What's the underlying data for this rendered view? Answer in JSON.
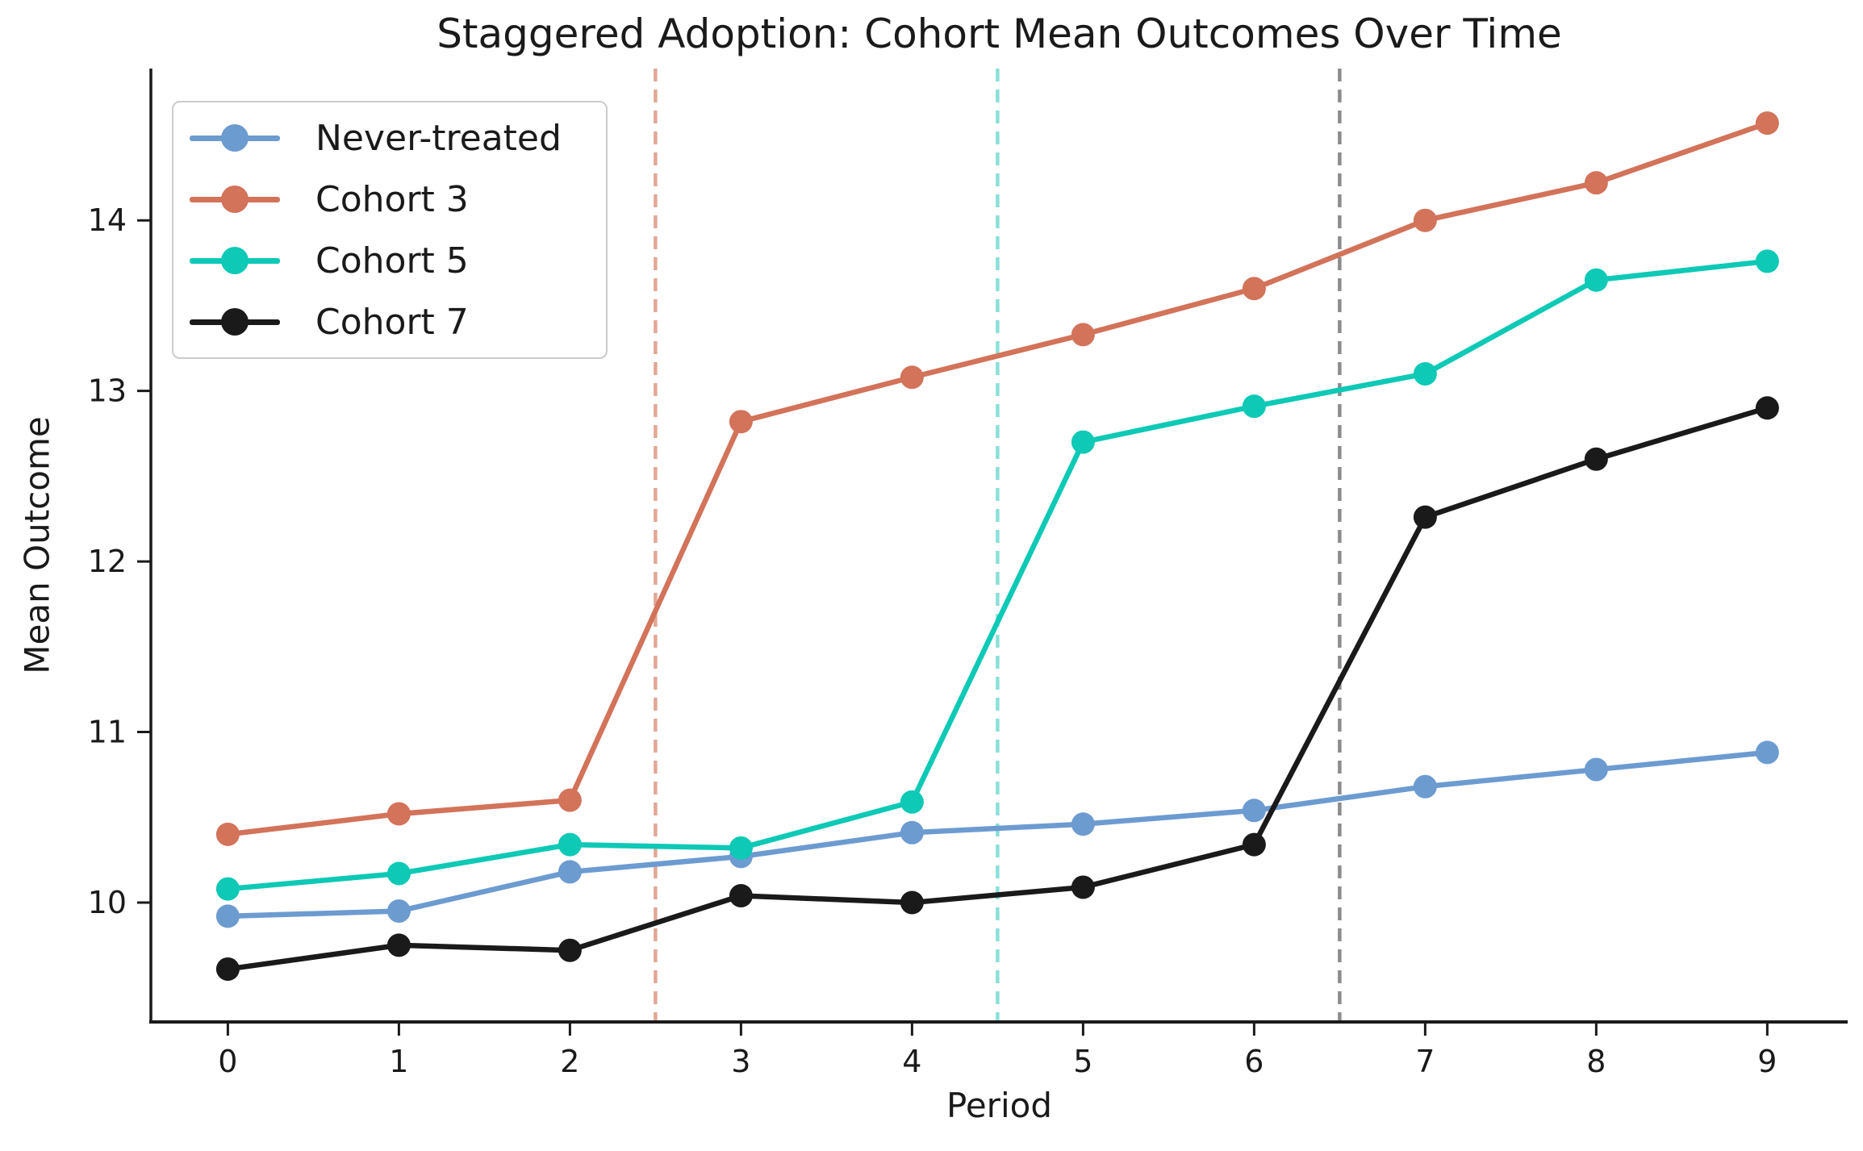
{
  "chart_data": {
    "type": "line",
    "title": "Staggered Adoption: Cohort Mean Outcomes Over Time",
    "xlabel": "Period",
    "ylabel": "Mean Outcome",
    "x": [
      0,
      1,
      2,
      3,
      4,
      5,
      6,
      7,
      8,
      9
    ],
    "series": [
      {
        "name": "Never-treated",
        "color": "#6c9bd0",
        "values": [
          9.92,
          9.95,
          10.18,
          10.27,
          10.41,
          10.46,
          10.54,
          10.68,
          10.78,
          10.88
        ]
      },
      {
        "name": "Cohort 3",
        "color": "#d2735a",
        "values": [
          10.4,
          10.52,
          10.6,
          12.82,
          13.08,
          13.33,
          13.6,
          14.0,
          14.22,
          14.57
        ]
      },
      {
        "name": "Cohort 5",
        "color": "#0dc9b5",
        "values": [
          10.08,
          10.17,
          10.34,
          10.32,
          10.59,
          12.7,
          12.91,
          13.1,
          13.65,
          13.76
        ]
      },
      {
        "name": "Cohort 7",
        "color": "#1a1a1a",
        "values": [
          9.61,
          9.75,
          9.72,
          10.04,
          10.0,
          10.09,
          10.34,
          12.26,
          12.6,
          12.9
        ]
      }
    ],
    "vlines": [
      {
        "x": 2.5,
        "color": "#e2a795"
      },
      {
        "x": 4.5,
        "color": "#8ae0d8"
      },
      {
        "x": 6.5,
        "color": "#8c8c8c"
      }
    ],
    "xticks": [
      "0",
      "1",
      "2",
      "3",
      "4",
      "5",
      "6",
      "7",
      "8",
      "9"
    ],
    "xtick_values": [
      0,
      1,
      2,
      3,
      4,
      5,
      6,
      7,
      8,
      9
    ],
    "yticks": [
      "10",
      "11",
      "12",
      "13",
      "14"
    ],
    "ytick_values": [
      10,
      11,
      12,
      13,
      14
    ],
    "xlim": [
      -0.45,
      9.47
    ],
    "ylim": [
      9.3,
      14.89
    ],
    "grid": false,
    "legend_position": "upper-left",
    "axis_color": "#1a1a1a"
  }
}
